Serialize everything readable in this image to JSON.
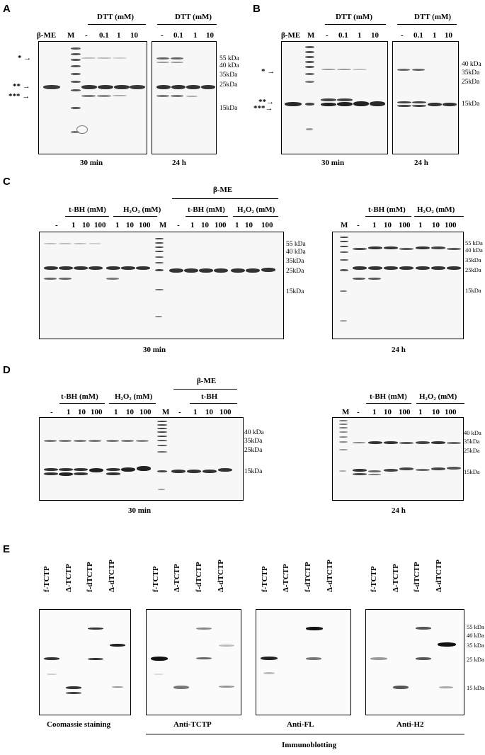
{
  "panels": {
    "A": "A",
    "B": "B",
    "C": "C",
    "D": "D",
    "E": "E"
  },
  "common": {
    "bme": "β-ME",
    "marker": "M",
    "dash": "-",
    "dtt_header": "DTT (mM)",
    "dtt_conc": [
      "0.1",
      "1",
      "10"
    ],
    "tbh_header": "t-BH (mM)",
    "tbh_plain": "t-BH",
    "h2o2_header": "H₂O₂ (mM)",
    "ox_conc": [
      "1",
      "10",
      "100"
    ],
    "time_30": "30 min",
    "time_24": "24 h"
  },
  "mw_markers": {
    "m55": "55 kDa",
    "m40": "40 kDa",
    "m35": "35kDa",
    "m25": "25kDa",
    "m15": "15kDa",
    "e55": "55 kDa",
    "e40": "40 kDa",
    "e35": "35 kDa",
    "e25": "25 kDa",
    "e15": "15 kDa"
  },
  "arrows": {
    "a1": "* →",
    "a2": "** →",
    "a3": "*** →",
    "b1": "* →",
    "b2": "**→",
    "b3": "***→"
  },
  "panel_e": {
    "lanes": [
      "f-TCTP",
      "Δ-TCTP",
      "f-dTCTP",
      "Δ-dTCTP"
    ],
    "captions": [
      "Coomassie staining",
      "Anti-TCTP",
      "Anti-FL",
      "Anti-H2"
    ],
    "group_label": "Immunoblotting"
  }
}
